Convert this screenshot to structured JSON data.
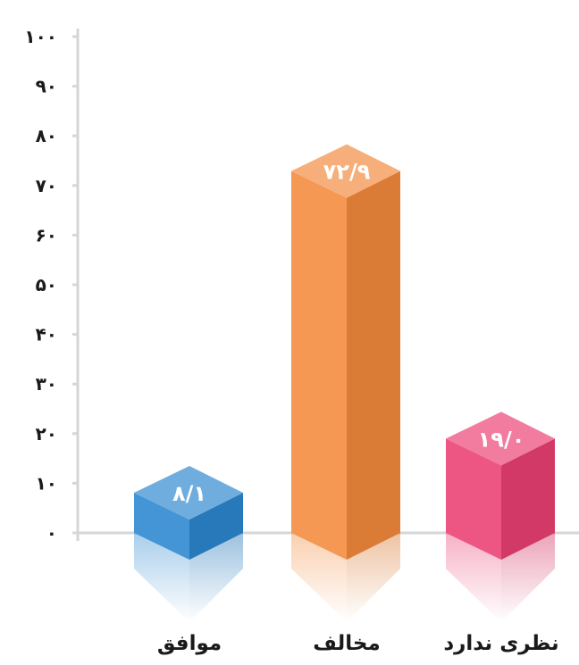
{
  "chart_data": {
    "type": "bar",
    "categories": [
      "موافق",
      "مخالف",
      "نظری ندارد"
    ],
    "values": [
      8.1,
      72.9,
      19.0
    ],
    "value_labels": [
      "۸/۱",
      "۷۲/۹",
      "۱۹/۰"
    ],
    "colors": [
      "#2b86cf",
      "#f28a3c",
      "#ea3f72"
    ],
    "ylim": [
      0,
      100
    ],
    "yticks": [
      0,
      10,
      20,
      30,
      40,
      50,
      60,
      70,
      80,
      90,
      100
    ],
    "ytick_labels": [
      "۰",
      "۱۰",
      "۲۰",
      "۳۰",
      "۴۰",
      "۵۰",
      "۶۰",
      "۷۰",
      "۸۰",
      "۹۰",
      "۱۰۰"
    ],
    "grid": false,
    "legend": "none"
  }
}
